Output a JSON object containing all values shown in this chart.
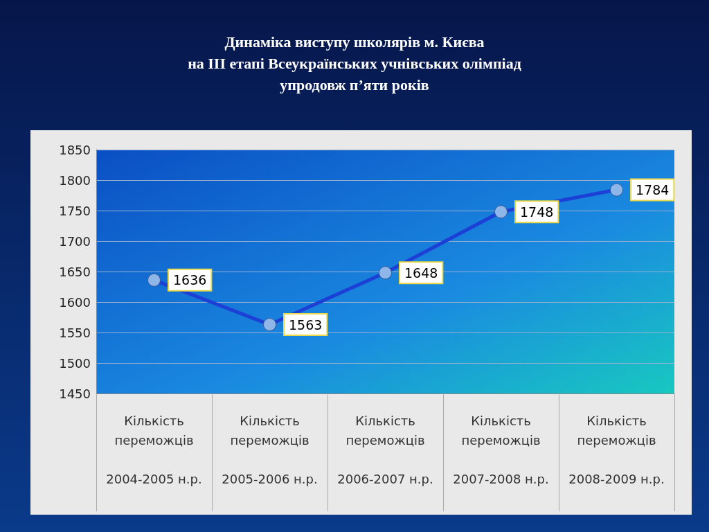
{
  "chart_data": {
    "type": "line",
    "title": "Динаміка виступу школярів м. Києва\nна III  етапі Всеукраїнських учнівських олімпіад\nупродовж  п’яти  років",
    "categories": [
      "Кількість переможців 2004-2005 н.р.",
      "Кількість переможців 2005-2006 н.р.",
      "Кількість переможців 2006-2007 н.р.",
      "Кількість переможців 2007-2008 н.р.",
      "Кількість переможців 2008-2009 н.р."
    ],
    "series": [
      {
        "color": "#1c3fd6",
        "values": [
          1636,
          1563,
          1648,
          1748,
          1784
        ]
      }
    ],
    "ylim": [
      1450,
      1850
    ],
    "yticks": [
      1450,
      1500,
      1550,
      1600,
      1650,
      1700,
      1750,
      1800,
      1850
    ],
    "grid": "y",
    "marker": "circle",
    "line_style": "solid",
    "data_labels": true
  }
}
